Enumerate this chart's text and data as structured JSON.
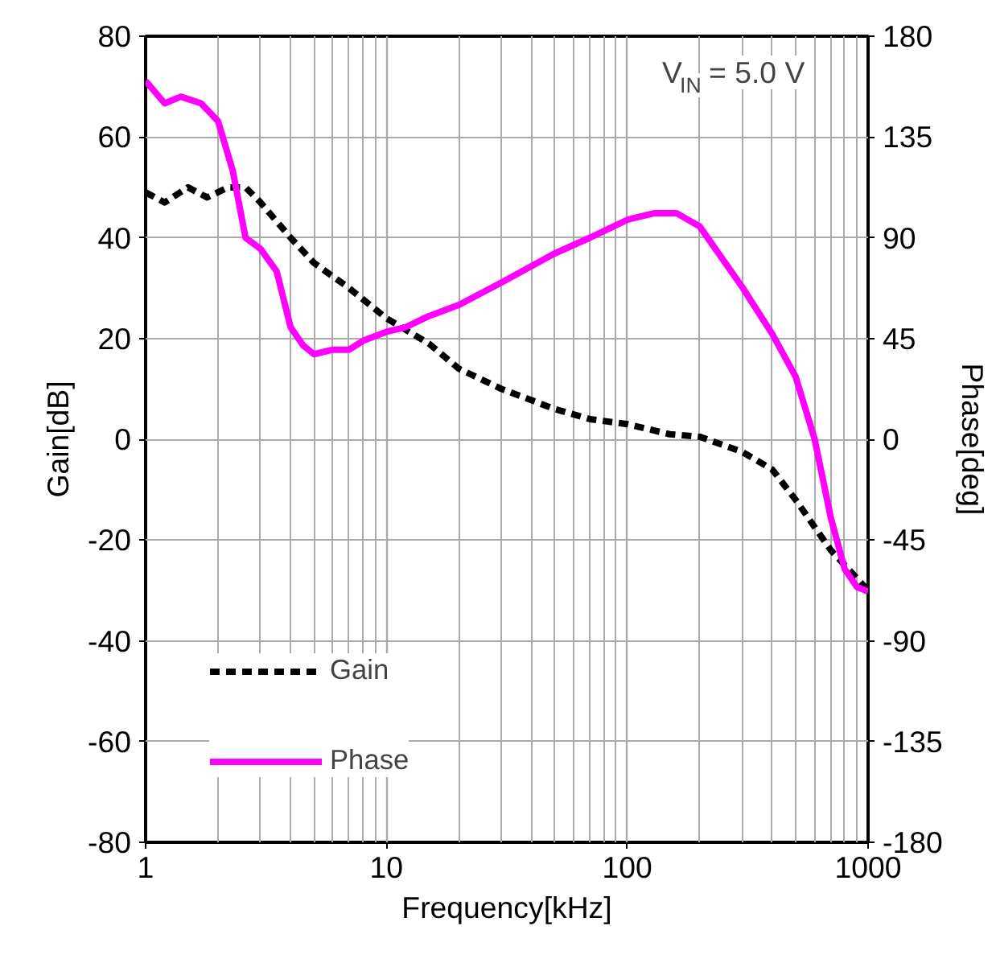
{
  "chart_data": {
    "type": "line",
    "xlabel": "Frequency[kHz]",
    "ylabel": "Gain[dB]",
    "y2label": "Phase[deg]",
    "log": "x",
    "grid": true,
    "legend": "bottom left",
    "xlim": [
      1,
      1000
    ],
    "xticks": [
      1,
      10,
      100,
      1000
    ],
    "ylim": [
      -80,
      80
    ],
    "yticks": [
      -80,
      -60,
      -40,
      -20,
      0,
      20,
      40,
      60,
      80
    ],
    "y2lim": [
      -180,
      180
    ],
    "y2ticks": [
      -180,
      -135,
      -90,
      -45,
      0,
      45,
      90,
      135,
      180
    ],
    "annotations": [
      "V$_{IN}$ = 5.0 V"
    ],
    "series": [
      {
        "name": "Gain",
        "color": "#000000",
        "line_style": "dashed",
        "x": [
          1,
          1.2,
          1.5,
          1.8,
          2.2,
          2.6,
          3,
          4,
          5,
          7,
          10,
          15,
          20,
          30,
          50,
          70,
          100,
          150,
          200,
          300,
          400,
          500,
          700,
          1000
        ],
        "values": [
          49,
          47,
          50,
          48,
          50,
          50,
          47,
          40,
          35,
          30,
          24,
          19,
          14,
          10,
          6,
          4,
          3,
          1,
          0.5,
          -2.5,
          -6,
          -12,
          -22,
          -30
        ]
      },
      {
        "name": "Phase",
        "color": "#ff00ff",
        "line_style": "solid",
        "axis": "y2",
        "x": [
          1,
          1.2,
          1.4,
          1.7,
          2,
          2.3,
          2.6,
          3,
          3.5,
          4,
          4.5,
          5,
          6,
          7,
          8,
          10,
          12,
          15,
          20,
          30,
          50,
          70,
          100,
          130,
          160,
          200,
          300,
          400,
          500,
          600,
          700,
          800,
          900,
          1000
        ],
        "values": [
          160,
          150,
          153,
          150,
          142,
          120,
          90,
          85,
          75,
          50,
          42,
          38,
          40,
          40,
          44,
          48,
          50,
          55,
          60,
          70,
          83,
          90,
          98,
          101,
          101,
          95,
          68,
          47,
          28,
          0,
          -35,
          -58,
          -66,
          -68
        ]
      }
    ]
  }
}
